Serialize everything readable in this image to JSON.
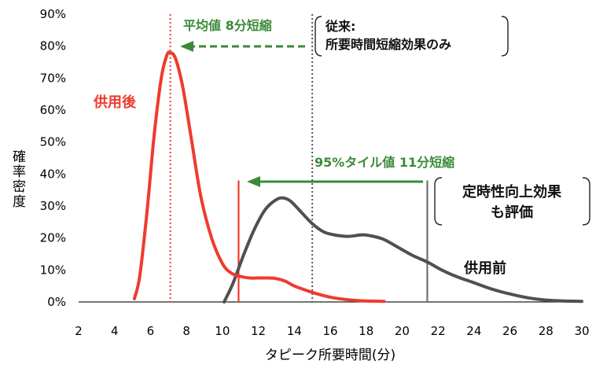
{
  "chart_data": {
    "type": "line",
    "xlabel": "タピーク所要時間(分)",
    "ylabel": "確率密度",
    "x_ticks": [
      "2",
      "4",
      "6",
      "8",
      "10",
      "12",
      "14",
      "16",
      "18",
      "20",
      "22",
      "24",
      "26",
      "28",
      "30"
    ],
    "y_ticks": [
      "0%",
      "10%",
      "20%",
      "30%",
      "40%",
      "50%",
      "60%",
      "70%",
      "80%",
      "90%"
    ],
    "xlim": [
      2,
      30
    ],
    "ylim": [
      0,
      90
    ],
    "grid": false,
    "legend": "none",
    "colors": {
      "after": "#ee3b2e",
      "before": "#505050",
      "arrow": "#3a8a3a"
    },
    "series": [
      {
        "name": "供用後",
        "color": "#ee3b2e",
        "points": [
          [
            5.1,
            1
          ],
          [
            5.4,
            8
          ],
          [
            5.8,
            28
          ],
          [
            6.2,
            52
          ],
          [
            6.6,
            70
          ],
          [
            6.9,
            77
          ],
          [
            7.1,
            78
          ],
          [
            7.4,
            76
          ],
          [
            7.8,
            67
          ],
          [
            8.3,
            50
          ],
          [
            8.8,
            33
          ],
          [
            9.4,
            20
          ],
          [
            10.0,
            12
          ],
          [
            10.5,
            9
          ],
          [
            11.0,
            8
          ],
          [
            11.5,
            7.5
          ],
          [
            12.0,
            7.5
          ],
          [
            12.5,
            7.5
          ],
          [
            13.0,
            7.3
          ],
          [
            13.5,
            6.5
          ],
          [
            14.0,
            5
          ],
          [
            15.0,
            3
          ],
          [
            16.0,
            1.5
          ],
          [
            17.0,
            0.7
          ],
          [
            18.0,
            0.3
          ],
          [
            19.0,
            0.2
          ]
        ]
      },
      {
        "name": "供用前",
        "color": "#505050",
        "points": [
          [
            10.1,
            0
          ],
          [
            10.6,
            6
          ],
          [
            11.2,
            15
          ],
          [
            11.8,
            23
          ],
          [
            12.4,
            29
          ],
          [
            13.0,
            32
          ],
          [
            13.4,
            32.5
          ],
          [
            13.8,
            31.5
          ],
          [
            14.4,
            28
          ],
          [
            15.0,
            24.5
          ],
          [
            15.6,
            22
          ],
          [
            16.2,
            21
          ],
          [
            17.0,
            20.5
          ],
          [
            17.8,
            21
          ],
          [
            18.4,
            20.5
          ],
          [
            19.0,
            19.5
          ],
          [
            19.8,
            17
          ],
          [
            20.6,
            14.5
          ],
          [
            21.4,
            12.5
          ],
          [
            22.2,
            10
          ],
          [
            23.0,
            8
          ],
          [
            24.0,
            6
          ],
          [
            25.0,
            4
          ],
          [
            26.0,
            2.5
          ],
          [
            27.0,
            1.3
          ],
          [
            28.0,
            0.6
          ],
          [
            29.0,
            0.3
          ],
          [
            30.0,
            0.2
          ]
        ]
      }
    ],
    "reference_lines": [
      {
        "x": 7.1,
        "style": "dotted",
        "color": "#ee3b2e"
      },
      {
        "x": 15.0,
        "style": "dotted",
        "color": "#555555"
      },
      {
        "x": 10.9,
        "style": "solid",
        "color": "#ee3b2e",
        "y_top": 38
      },
      {
        "x": 21.4,
        "style": "solid",
        "color": "#707070",
        "y_top": 38
      }
    ],
    "annotations": {
      "mean_arrow_label": "平均値  8分短縮",
      "p95_arrow_label": "95%タイル値  11分短縮",
      "after_label": "供用後",
      "before_label": "供用前",
      "note_top_line1": "従来:",
      "note_top_line2": "所要時間短縮効果のみ",
      "note_mid_line1": "定時性向上効果",
      "note_mid_line2": "も評価"
    }
  }
}
